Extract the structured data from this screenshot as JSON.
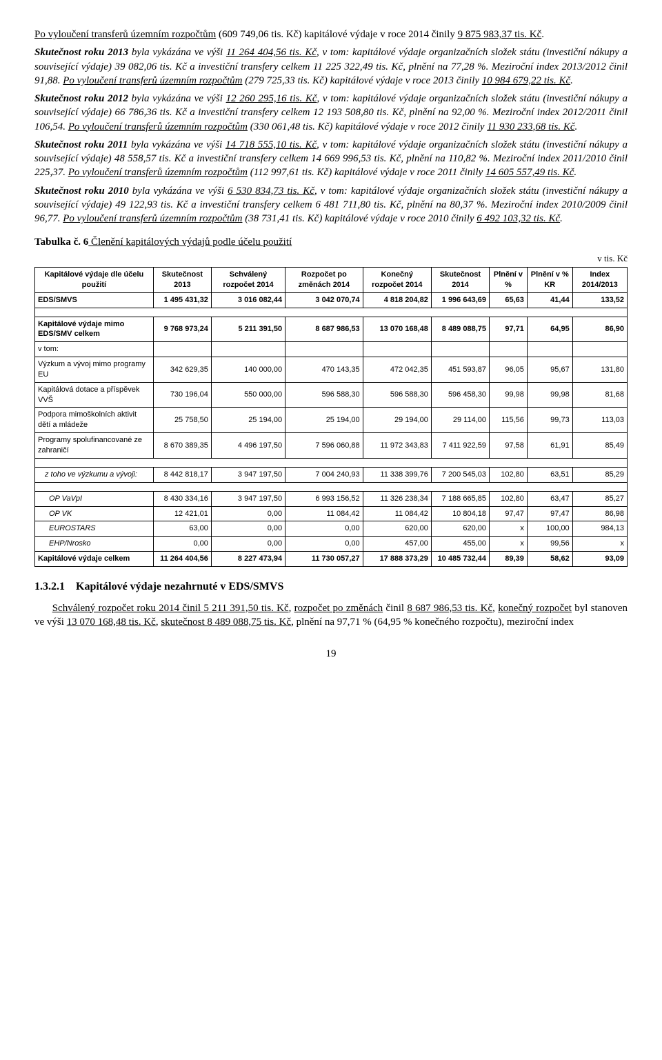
{
  "paragraphs": {
    "p1a": "Po vyloučení transferů územním rozpočtům",
    "p1b": " (609 749,06 tis. Kč) kapitálové výdaje v roce 2014 činily ",
    "p1c": "9 875 983,37 tis. Kč",
    "p1d": ".",
    "p2a": "Skutečnost roku 2013",
    "p2b": " byla vykázána ve výši ",
    "p2c": "11 264 404,56 tis. Kč",
    "p2d": ", v tom: kapitálové výdaje organizačních složek státu (investiční nákupy a související výdaje) 39 082,06 tis. Kč a investiční transfery celkem 11 225 322,49 tis. Kč, plnění na 77,28 %. Meziroční index 2013/2012 činil 91,88. ",
    "p2e": "Po vyloučení transferů územním rozpočtům",
    "p2f": " (279 725,33 tis. Kč) kapitálové výdaje v roce 2013 činily ",
    "p2g": "10 984 679,22 tis. Kč",
    "p2h": ".",
    "p3a": "Skutečnost roku 2012",
    "p3b": " byla vykázána ve výši ",
    "p3c": "12 260 295,16 tis. Kč",
    "p3d": ", v tom: kapitálové výdaje organizačních složek státu (investiční nákupy a související výdaje) 66 786,36 tis. Kč a investiční transfery celkem 12 193 508,80 tis. Kč, plnění na 92,00 %. Meziroční index 2012/2011 činil 106,54. ",
    "p3e": "Po vyloučení transferů územním rozpočtům",
    "p3f": " (330 061,48 tis. Kč) kapitálové výdaje v roce 2012 činily ",
    "p3g": "11 930 233,68 tis. Kč",
    "p3h": ".",
    "p4a": "Skutečnost roku 2011",
    "p4b": " byla vykázána ve výši ",
    "p4c": "14 718 555,10 tis. Kč",
    "p4d": ", v tom: kapitálové výdaje organizačních složek státu (investiční nákupy a související výdaje) 48 558,57 tis. Kč a investiční transfery celkem 14 669 996,53 tis. Kč, plnění na 110,82 %. Meziroční index 2011/2010 činil 225,37. ",
    "p4e": "Po vyloučení transferů územním rozpočtům",
    "p4f": " (112 997,61 tis. Kč) kapitálové výdaje v roce 2011 činily ",
    "p4g": "14 605 557,49 tis. Kč",
    "p4h": ".",
    "p5a": "Skutečnost roku 2010",
    "p5b": " byla vykázána ve výši ",
    "p5c": "6 530 834,73 tis. Kč",
    "p5d": ", v tom: kapitálové výdaje organizačních složek státu (investiční nákupy a související výdaje) 49 122,93 tis. Kč a investiční transfery celkem 6 481 711,80 tis. Kč, plnění na 80,37 %. Meziroční index 2010/2009 činil 96,77. ",
    "p5e": "Po vyloučení transferů územním rozpočtům",
    "p5f": " (38 731,41 tis. Kč) kapitálové výdaje v roce 2010 činily ",
    "p5g": "6 492 103,32 tis. Kč",
    "p5h": "."
  },
  "tableTitle": {
    "prefix": "Tabulka č. 6",
    "rest": " Členění kapitálových výdajů podle účelu použití"
  },
  "unitLabel": "v tis. Kč",
  "table": {
    "headers": [
      "Kapitálové výdaje dle účelu použití",
      "Skutečnost 2013",
      "Schválený rozpočet 2014",
      "Rozpočet po změnách 2014",
      "Konečný rozpočet 2014",
      "Skutečnost 2014",
      "Plnění v %",
      "Plnění v % KR",
      "Index 2014/2013"
    ],
    "rows": [
      {
        "style": "bold",
        "cells": [
          "EDS/SMVS",
          "1 495 431,32",
          "3 016 082,44",
          "3 042 070,74",
          "4 818 204,82",
          "1 996 643,69",
          "65,63",
          "41,44",
          "133,52"
        ]
      },
      {
        "style": "spacer",
        "cells": [
          "",
          "",
          "",
          "",
          "",
          "",
          "",
          "",
          ""
        ]
      },
      {
        "style": "bold",
        "cells": [
          "Kapitálové výdaje mimo EDS/SMV celkem",
          "9 768 973,24",
          "5 211 391,50",
          "8 687 986,53",
          "13 070 168,48",
          "8 489 088,75",
          "97,71",
          "64,95",
          "86,90"
        ]
      },
      {
        "style": "plain",
        "cells": [
          "v tom:",
          "",
          "",
          "",
          "",
          "",
          "",
          "",
          ""
        ]
      },
      {
        "style": "plain",
        "cells": [
          "Výzkum a vývoj mimo programy EU",
          "342 629,35",
          "140 000,00",
          "470 143,35",
          "472 042,35",
          "451 593,87",
          "96,05",
          "95,67",
          "131,80"
        ]
      },
      {
        "style": "plain",
        "cells": [
          "Kapitálová dotace a příspěvek VVŠ",
          "730 196,04",
          "550 000,00",
          "596 588,30",
          "596 588,30",
          "596 458,30",
          "99,98",
          "99,98",
          "81,68"
        ]
      },
      {
        "style": "plain",
        "cells": [
          "Podpora mimoškolních aktivit dětí a mládeže",
          "25 758,50",
          "25 194,00",
          "25 194,00",
          "29 194,00",
          "29 114,00",
          "115,56",
          "99,73",
          "113,03"
        ]
      },
      {
        "style": "plain",
        "cells": [
          "Programy spolufinancované ze zahraničí",
          "8 670 389,35",
          "4 496 197,50",
          "7 596 060,88",
          "11 972 343,83",
          "7 411 922,59",
          "97,58",
          "61,91",
          "85,49"
        ]
      },
      {
        "style": "spacer",
        "cells": [
          "",
          "",
          "",
          "",
          "",
          "",
          "",
          "",
          ""
        ]
      },
      {
        "style": "italic",
        "cells": [
          "z toho ve výzkumu a vývoji:",
          "8 442 818,17",
          "3 947 197,50",
          "7 004 240,93",
          "11 338 399,76",
          "7 200 545,03",
          "102,80",
          "63,51",
          "85,29"
        ]
      },
      {
        "style": "spacer",
        "cells": [
          "",
          "",
          "",
          "",
          "",
          "",
          "",
          "",
          ""
        ]
      },
      {
        "style": "italic2",
        "cells": [
          "OP VaVpI",
          "8 430 334,16",
          "3 947 197,50",
          "6 993 156,52",
          "11 326 238,34",
          "7 188 665,85",
          "102,80",
          "63,47",
          "85,27"
        ]
      },
      {
        "style": "italic2",
        "cells": [
          "OP VK",
          "12 421,01",
          "0,00",
          "11 084,42",
          "11 084,42",
          "10 804,18",
          "97,47",
          "97,47",
          "86,98"
        ]
      },
      {
        "style": "italic2",
        "cells": [
          "EUROSTARS",
          "63,00",
          "0,00",
          "0,00",
          "620,00",
          "620,00",
          "x",
          "100,00",
          "984,13"
        ]
      },
      {
        "style": "italic2",
        "cells": [
          "EHP/Nrosko",
          "0,00",
          "0,00",
          "0,00",
          "457,00",
          "455,00",
          "x",
          "99,56",
          "x"
        ]
      },
      {
        "style": "bold",
        "cells": [
          "Kapitálové výdaje celkem",
          "11 264 404,56",
          "8 227 473,94",
          "11 730 057,27",
          "17 888 373,29",
          "10 485 732,44",
          "89,39",
          "58,62",
          "93,09"
        ]
      }
    ]
  },
  "section": {
    "num": "1.3.2.1",
    "title": "Kapitálové výdaje nezahrnuté v EDS/SMVS"
  },
  "closing": {
    "a": "Schválený rozpočet roku 2014 činil 5 211 391,50 tis. Kč",
    "b": ", ",
    "c": "rozpočet po změnách",
    "d": " činil ",
    "e": "8 687 986,53 tis. Kč",
    "f": ", ",
    "g": "konečný rozpočet",
    "h": " byl stanoven ve výši ",
    "i": "13 070 168,48 tis. Kč",
    "j": ", ",
    "k": "skutečnost 8 489 088,75 tis. Kč",
    "l": ", plnění na 97,71 % (64,95 % konečného rozpočtu), meziroční index"
  },
  "pageNumber": "19"
}
